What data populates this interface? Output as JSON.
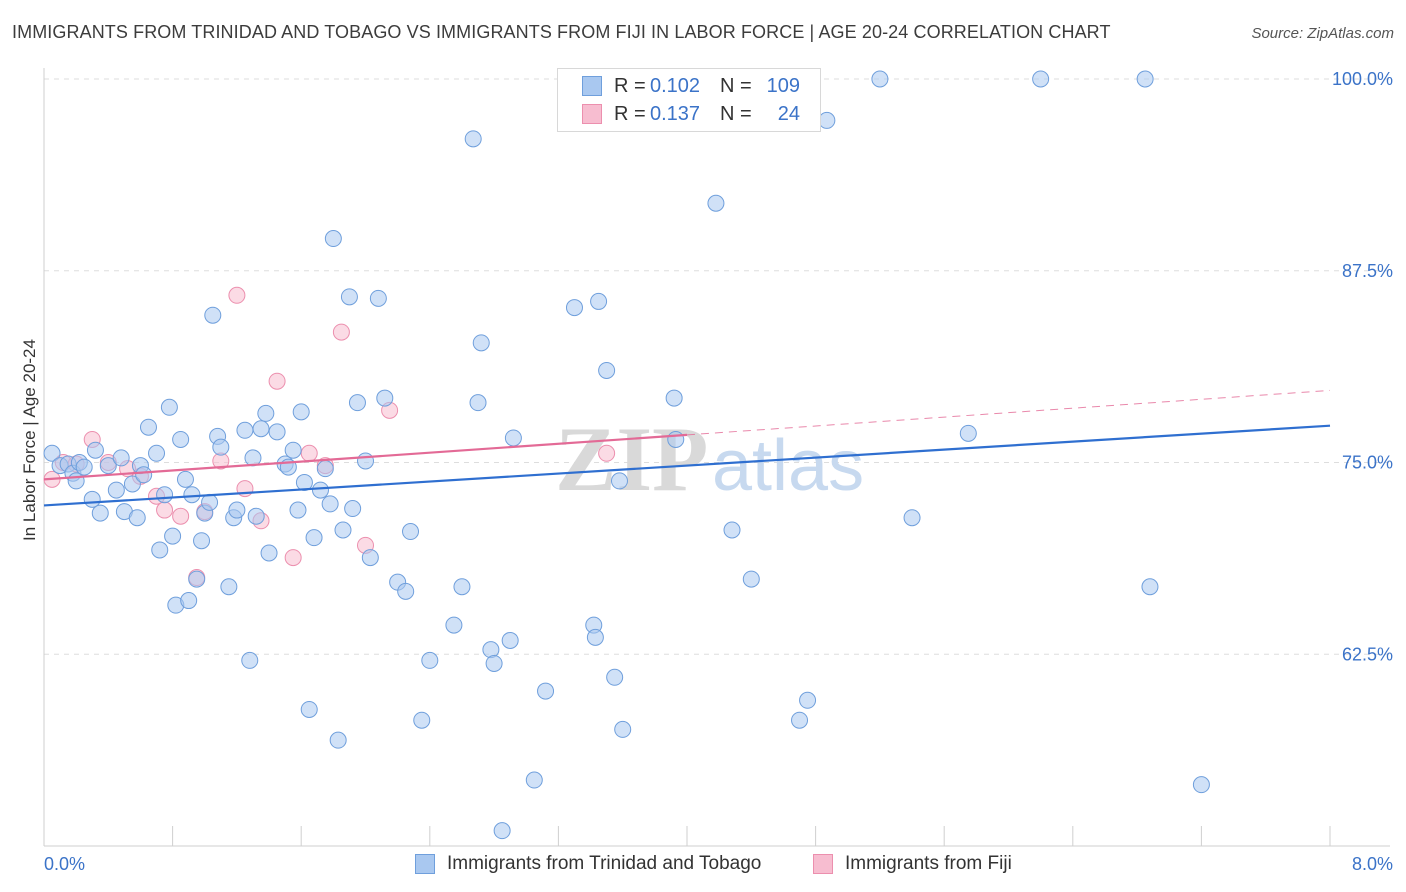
{
  "title": "IMMIGRANTS FROM TRINIDAD AND TOBAGO VS IMMIGRANTS FROM FIJI IN LABOR FORCE | AGE 20-24 CORRELATION CHART",
  "source": "Source: ZipAtlas.com",
  "watermark": "ZIPatlas",
  "legend": {
    "rows": [
      {
        "r_label": "R =",
        "r_value": "0.102",
        "n_label": "N =",
        "n_value": "109"
      },
      {
        "r_label": "R =",
        "r_value": "0.137",
        "n_label": "N =",
        "n_value": "24"
      }
    ]
  },
  "bottom_legend": {
    "items": [
      "Immigrants from Trinidad and Tobago",
      "Immigrants from Fiji"
    ]
  },
  "colors": {
    "series1_fill": "#a9c8f0",
    "series1_stroke": "#6f9fdc",
    "series1_line": "#2f6fd0",
    "series2_fill": "#f7bdd0",
    "series2_stroke": "#ec8fae",
    "series2_line": "#e36a96",
    "tick_text": "#3b73c8",
    "grid": "#dddddd"
  },
  "chart_data": {
    "type": "scatter",
    "title": "IMMIGRANTS FROM TRINIDAD AND TOBAGO VS IMMIGRANTS FROM FIJI IN LABOR FORCE | AGE 20-24 CORRELATION CHART",
    "xlabel": "",
    "ylabel": "In Labor Force | Age 20-24",
    "xlim": [
      0.0,
      8.0
    ],
    "ylim": [
      50.0,
      100.0
    ],
    "x_tick_labels": [
      "0.0%",
      "8.0%"
    ],
    "y_ticks": [
      62.5,
      75.0,
      87.5,
      100.0
    ],
    "y_tick_labels": [
      "62.5%",
      "75.0%",
      "87.5%",
      "100.0%"
    ],
    "grid": true,
    "legend_position": "top-center",
    "series": [
      {
        "name": "Immigrants from Trinidad and Tobago",
        "r": 0.102,
        "n": 109,
        "trend": {
          "x": [
            0.0,
            8.0
          ],
          "y": [
            72.2,
            77.4
          ]
        },
        "points": [
          [
            0.05,
            75.6
          ],
          [
            0.1,
            74.8
          ],
          [
            0.15,
            74.9
          ],
          [
            0.18,
            74.3
          ],
          [
            0.2,
            73.8
          ],
          [
            0.22,
            75.0
          ],
          [
            0.25,
            74.7
          ],
          [
            0.3,
            72.6
          ],
          [
            0.32,
            75.8
          ],
          [
            0.35,
            71.7
          ],
          [
            0.4,
            74.8
          ],
          [
            0.45,
            73.2
          ],
          [
            0.48,
            75.3
          ],
          [
            0.5,
            71.8
          ],
          [
            0.55,
            73.6
          ],
          [
            0.58,
            71.4
          ],
          [
            0.6,
            74.8
          ],
          [
            0.62,
            74.2
          ],
          [
            0.65,
            77.3
          ],
          [
            0.7,
            75.6
          ],
          [
            0.72,
            69.3
          ],
          [
            0.75,
            72.9
          ],
          [
            0.78,
            78.6
          ],
          [
            0.8,
            70.2
          ],
          [
            0.82,
            65.7
          ],
          [
            0.85,
            76.5
          ],
          [
            0.88,
            73.9
          ],
          [
            0.9,
            66.0
          ],
          [
            0.92,
            72.9
          ],
          [
            0.95,
            67.4
          ],
          [
            0.98,
            69.9
          ],
          [
            1.0,
            71.7
          ],
          [
            1.03,
            72.4
          ],
          [
            1.05,
            84.6
          ],
          [
            1.08,
            76.7
          ],
          [
            1.1,
            76.0
          ],
          [
            1.15,
            66.9
          ],
          [
            1.18,
            71.4
          ],
          [
            1.2,
            71.9
          ],
          [
            1.25,
            77.1
          ],
          [
            1.28,
            62.1
          ],
          [
            1.3,
            75.3
          ],
          [
            1.32,
            71.5
          ],
          [
            1.35,
            77.2
          ],
          [
            1.38,
            78.2
          ],
          [
            1.4,
            69.1
          ],
          [
            1.45,
            77.0
          ],
          [
            1.5,
            74.9
          ],
          [
            1.52,
            74.7
          ],
          [
            1.55,
            75.8
          ],
          [
            1.58,
            71.9
          ],
          [
            1.6,
            78.3
          ],
          [
            1.62,
            73.7
          ],
          [
            1.65,
            58.9
          ],
          [
            1.68,
            70.1
          ],
          [
            1.72,
            73.2
          ],
          [
            1.75,
            74.6
          ],
          [
            1.78,
            72.3
          ],
          [
            1.8,
            89.6
          ],
          [
            1.83,
            56.9
          ],
          [
            1.86,
            70.6
          ],
          [
            1.9,
            85.8
          ],
          [
            1.92,
            72.0
          ],
          [
            1.95,
            78.9
          ],
          [
            2.0,
            75.1
          ],
          [
            2.03,
            68.8
          ],
          [
            2.08,
            85.7
          ],
          [
            2.12,
            79.2
          ],
          [
            2.2,
            67.2
          ],
          [
            2.25,
            66.6
          ],
          [
            2.28,
            70.5
          ],
          [
            2.35,
            58.2
          ],
          [
            2.4,
            62.1
          ],
          [
            2.55,
            64.4
          ],
          [
            2.6,
            66.9
          ],
          [
            2.67,
            96.1
          ],
          [
            2.7,
            78.9
          ],
          [
            2.72,
            82.8
          ],
          [
            2.78,
            62.8
          ],
          [
            2.8,
            61.9
          ],
          [
            2.85,
            51.0
          ],
          [
            2.9,
            63.4
          ],
          [
            2.92,
            76.6
          ],
          [
            3.05,
            54.3
          ],
          [
            3.12,
            60.1
          ],
          [
            3.3,
            85.1
          ],
          [
            3.37,
            100.0
          ],
          [
            3.42,
            64.4
          ],
          [
            3.43,
            63.6
          ],
          [
            3.45,
            85.5
          ],
          [
            3.47,
            98.0
          ],
          [
            3.5,
            81.0
          ],
          [
            3.55,
            61.0
          ],
          [
            3.58,
            73.8
          ],
          [
            3.6,
            57.6
          ],
          [
            3.92,
            79.2
          ],
          [
            3.93,
            76.5
          ],
          [
            4.18,
            91.9
          ],
          [
            4.28,
            70.6
          ],
          [
            4.4,
            67.4
          ],
          [
            4.7,
            58.2
          ],
          [
            4.75,
            59.5
          ],
          [
            4.87,
            97.3
          ],
          [
            5.2,
            100.0
          ],
          [
            5.4,
            71.4
          ],
          [
            5.75,
            76.9
          ],
          [
            6.2,
            100.0
          ],
          [
            6.85,
            100.0
          ],
          [
            6.88,
            66.9
          ],
          [
            7.2,
            54.0
          ]
        ]
      },
      {
        "name": "Immigrants from Fiji",
        "r": 0.137,
        "n": 24,
        "trend": {
          "x": [
            0.0,
            4.0
          ],
          "y": [
            73.9,
            76.8
          ]
        },
        "trend_extension": {
          "x": [
            4.0,
            8.0
          ],
          "y": [
            76.8,
            79.7
          ]
        },
        "points": [
          [
            0.05,
            73.9
          ],
          [
            0.12,
            75.0
          ],
          [
            0.2,
            74.9
          ],
          [
            0.3,
            76.5
          ],
          [
            0.4,
            75.0
          ],
          [
            0.52,
            74.6
          ],
          [
            0.6,
            74.1
          ],
          [
            0.7,
            72.8
          ],
          [
            0.75,
            71.9
          ],
          [
            0.85,
            71.5
          ],
          [
            0.95,
            67.5
          ],
          [
            1.0,
            71.8
          ],
          [
            1.1,
            75.1
          ],
          [
            1.2,
            85.9
          ],
          [
            1.25,
            73.3
          ],
          [
            1.35,
            71.2
          ],
          [
            1.45,
            80.3
          ],
          [
            1.55,
            68.8
          ],
          [
            1.65,
            75.6
          ],
          [
            1.75,
            74.8
          ],
          [
            1.85,
            83.5
          ],
          [
            2.0,
            69.6
          ],
          [
            2.15,
            78.4
          ],
          [
            3.5,
            75.6
          ]
        ]
      }
    ]
  }
}
